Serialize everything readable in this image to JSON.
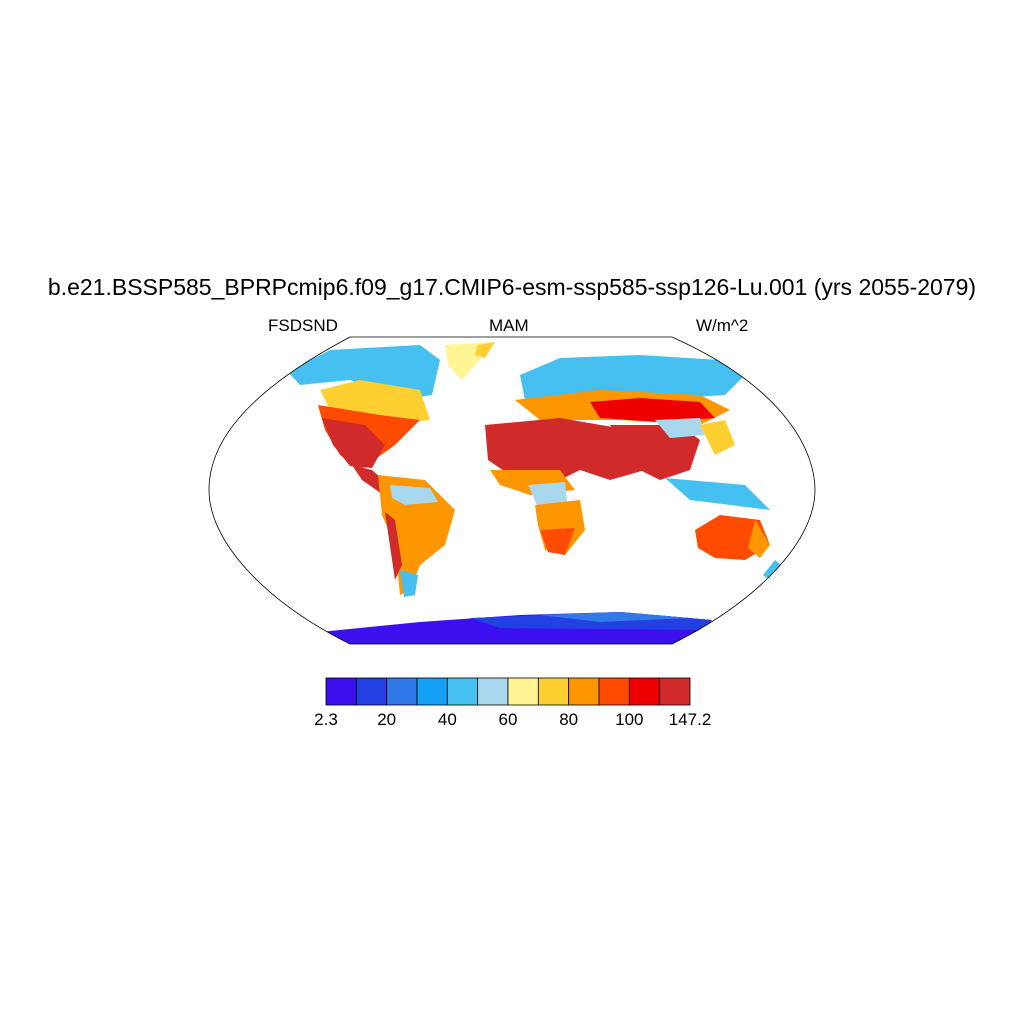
{
  "header": {
    "title": "b.e21.BSSP585_BPRPcmip6.f09_g17.CMIP6-esm-ssp585-ssp126-Lu.001 (yrs 2055-2079)",
    "variable": "FSDSND",
    "season": "MAM",
    "units": "W/m^2"
  },
  "colorbar": {
    "colors": [
      "#3c10ee",
      "#2340e3",
      "#3178e8",
      "#14a0f5",
      "#45c0f0",
      "#a9d8ee",
      "#fff595",
      "#fecf31",
      "#fe9600",
      "#fe4b00",
      "#ee0000",
      "#d12a2a"
    ],
    "labels": [
      "2.3",
      "20",
      "40",
      "60",
      "80",
      "100",
      "147.2"
    ]
  },
  "legend_colors": {
    "ocean": "#ffffff",
    "outline": "#000000"
  }
}
